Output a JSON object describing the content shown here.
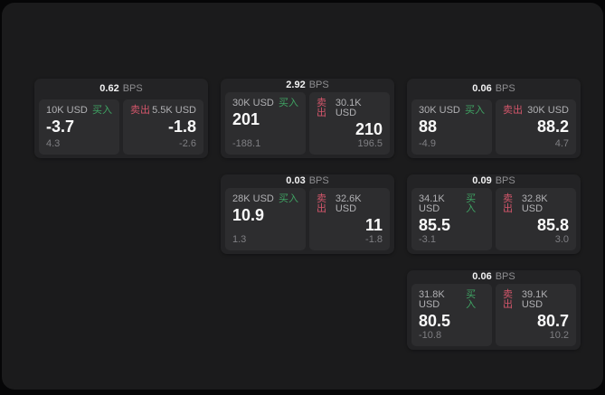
{
  "colors": {
    "page_bg": "#060607",
    "container_bg": "#1b1b1c",
    "card_bg": "#232325",
    "panel_bg": "#2d2d2f",
    "buy": "#3fa363",
    "sell": "#d4566b"
  },
  "labels": {
    "bps": "BPS",
    "buy": "买入",
    "sell": "卖出"
  },
  "cards": [
    {
      "row": 1,
      "col": 1,
      "bps": "0.62",
      "buy": {
        "amount": "10K USD",
        "price": "-3.7",
        "delta": "4.3"
      },
      "sell": {
        "amount": "5.5K USD",
        "price": "-1.8",
        "delta": "-2.6"
      }
    },
    {
      "row": 1,
      "col": 2,
      "bps": "2.92",
      "buy": {
        "amount": "30K USD",
        "price": "201",
        "delta": "-188.1"
      },
      "sell": {
        "amount": "30.1K USD",
        "price": "210",
        "delta": "196.5"
      }
    },
    {
      "row": 1,
      "col": 3,
      "bps": "0.06",
      "buy": {
        "amount": "30K USD",
        "price": "88",
        "delta": "-4.9"
      },
      "sell": {
        "amount": "30K USD",
        "price": "88.2",
        "delta": "4.7"
      }
    },
    {
      "row": 2,
      "col": 2,
      "bps": "0.03",
      "buy": {
        "amount": "28K USD",
        "price": "10.9",
        "delta": "1.3"
      },
      "sell": {
        "amount": "32.6K USD",
        "price": "11",
        "delta": "-1.8"
      }
    },
    {
      "row": 2,
      "col": 3,
      "bps": "0.09",
      "buy": {
        "amount": "34.1K USD",
        "price": "85.5",
        "delta": "-3.1"
      },
      "sell": {
        "amount": "32.8K USD",
        "price": "85.8",
        "delta": "3.0"
      }
    },
    {
      "row": 3,
      "col": 3,
      "bps": "0.06",
      "buy": {
        "amount": "31.8K USD",
        "price": "80.5",
        "delta": "-10.8"
      },
      "sell": {
        "amount": "39.1K USD",
        "price": "80.7",
        "delta": "10.2"
      }
    }
  ]
}
